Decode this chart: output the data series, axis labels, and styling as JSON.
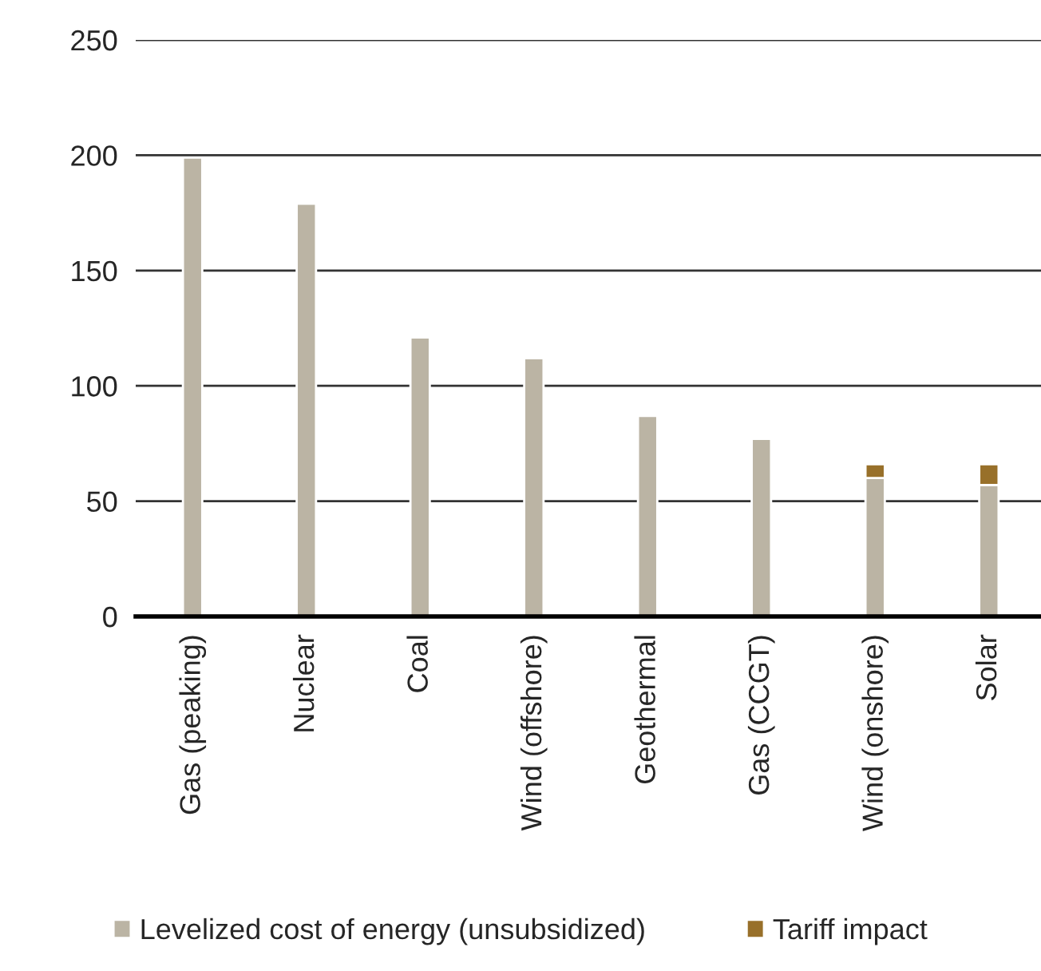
{
  "chart_data": {
    "type": "bar",
    "stacked": true,
    "categories": [
      "Gas (peaking)",
      "Nuclear",
      "Coal",
      "Wind (offshore)",
      "Geothermal",
      "Gas (CCGT)",
      "Wind (onshore)",
      "Solar"
    ],
    "series": [
      {
        "name": "Levelized cost of energy (unsubsidized)",
        "color": "#bbb4a4",
        "values": [
          199,
          179,
          121,
          112,
          87,
          77,
          60,
          57
        ]
      },
      {
        "name": "Tariff impact",
        "color": "#98702a",
        "values": [
          null,
          null,
          null,
          null,
          null,
          null,
          6,
          9
        ]
      }
    ],
    "ylim": [
      0,
      250
    ],
    "yticks": [
      0,
      50,
      100,
      150,
      200,
      250
    ],
    "grid": "y",
    "legend": "bottom"
  }
}
